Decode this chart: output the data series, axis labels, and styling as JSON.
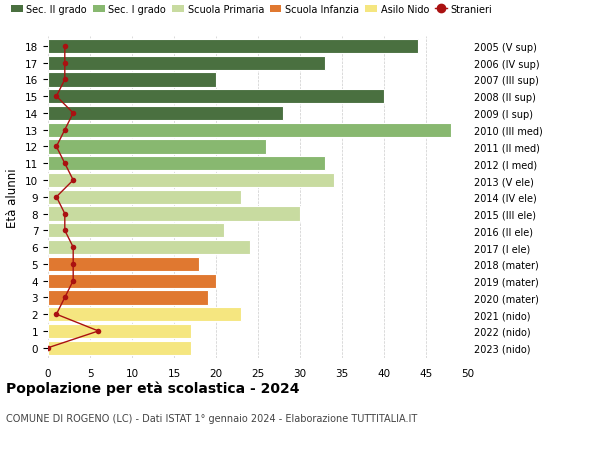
{
  "ages": [
    0,
    1,
    2,
    3,
    4,
    5,
    6,
    7,
    8,
    9,
    10,
    11,
    12,
    13,
    14,
    15,
    16,
    17,
    18
  ],
  "right_labels": [
    "2023 (nido)",
    "2022 (nido)",
    "2021 (nido)",
    "2020 (mater)",
    "2019 (mater)",
    "2018 (mater)",
    "2017 (I ele)",
    "2016 (II ele)",
    "2015 (III ele)",
    "2014 (IV ele)",
    "2013 (V ele)",
    "2012 (I med)",
    "2011 (II med)",
    "2010 (III med)",
    "2009 (I sup)",
    "2008 (II sup)",
    "2007 (III sup)",
    "2006 (IV sup)",
    "2005 (V sup)"
  ],
  "bar_values": [
    17,
    17,
    23,
    19,
    20,
    18,
    24,
    21,
    30,
    23,
    34,
    33,
    26,
    48,
    28,
    40,
    20,
    33,
    44
  ],
  "bar_colors": [
    "#f5e680",
    "#f5e680",
    "#f5e680",
    "#e07830",
    "#e07830",
    "#e07830",
    "#c8dba0",
    "#c8dba0",
    "#c8dba0",
    "#c8dba0",
    "#c8dba0",
    "#88b870",
    "#88b870",
    "#88b870",
    "#4a7040",
    "#4a7040",
    "#4a7040",
    "#4a7040",
    "#4a7040"
  ],
  "stranieri_values": [
    0,
    6,
    1,
    2,
    3,
    3,
    3,
    2,
    2,
    1,
    3,
    2,
    1,
    2,
    3,
    1,
    2,
    2,
    2
  ],
  "legend_labels": [
    "Sec. II grado",
    "Sec. I grado",
    "Scuola Primaria",
    "Scuola Infanzia",
    "Asilo Nido",
    "Stranieri"
  ],
  "legend_colors": [
    "#4a7040",
    "#88b870",
    "#c8dba0",
    "#e07830",
    "#f5e680",
    "#aa1111"
  ],
  "title": "Popolazione per età scolastica - 2024",
  "subtitle": "COMUNE DI ROGENO (LC) - Dati ISTAT 1° gennaio 2024 - Elaborazione TUTTITALIA.IT",
  "ylabel": "Età alunni",
  "xlim": [
    0,
    50
  ],
  "xticks": [
    0,
    5,
    10,
    15,
    20,
    25,
    30,
    35,
    40,
    45,
    50
  ],
  "bg_color": "#ffffff",
  "bar_height": 0.85
}
